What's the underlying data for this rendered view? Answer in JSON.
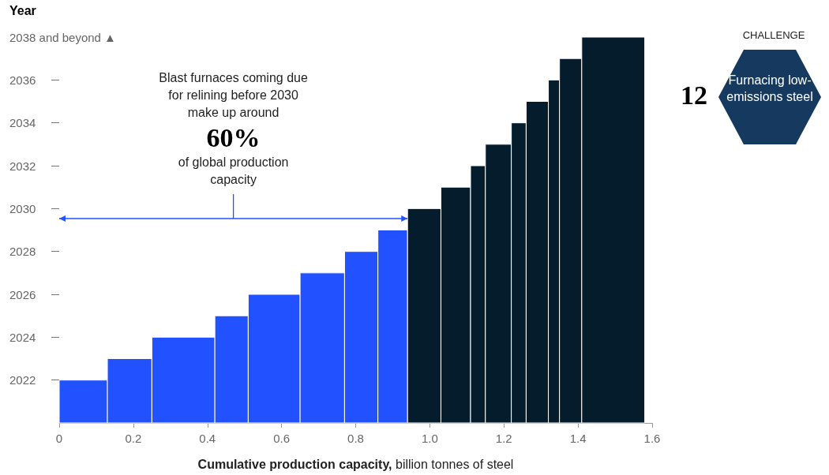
{
  "chart_data": {
    "type": "histogram",
    "ylabel": "Year",
    "xlabel": "Cumulative production capacity, billion tonnes of steel",
    "bins": [
      0,
      0.13,
      0.25,
      0.42,
      0.51,
      0.65,
      0.77,
      0.86,
      0.94,
      1.03,
      1.11,
      1.15,
      1.22,
      1.26,
      1.32,
      1.35,
      1.41,
      1.58
    ],
    "values": [
      2022,
      2023,
      2024,
      2025,
      2026,
      2027,
      2028,
      2029,
      2030,
      2031,
      2032,
      2033,
      2034,
      2035,
      2036,
      2037,
      2038
    ],
    "colors": [
      "#2251ff",
      "#2251ff",
      "#2251ff",
      "#2251ff",
      "#2251ff",
      "#2251ff",
      "#2251ff",
      "#2251ff",
      "#051c2c",
      "#051c2c",
      "#051c2c",
      "#051c2c",
      "#051c2c",
      "#051c2c",
      "#051c2c",
      "#051c2c",
      "#051c2c"
    ],
    "xlim": [
      0,
      1.6
    ],
    "xticks": [
      0,
      0.2,
      0.4,
      0.6,
      0.8,
      {
        "value": 1,
        "label": "1.0"
      },
      1.2,
      1.4,
      1.6
    ],
    "ylim": [
      2020,
      2038
    ],
    "yticks": [
      2022,
      2024,
      2026,
      2028,
      2030,
      2032,
      2034,
      2036,
      {
        "value": 2038,
        "label": "2038 and beyond ▲"
      }
    ],
    "grid": false,
    "annotations": [
      "Blast furnaces coming due for relining before 2030 make up around",
      "60%",
      "of global production capacity",
      "CHALLENGE",
      "12",
      "Furnacing low-emissions steel"
    ]
  }
}
